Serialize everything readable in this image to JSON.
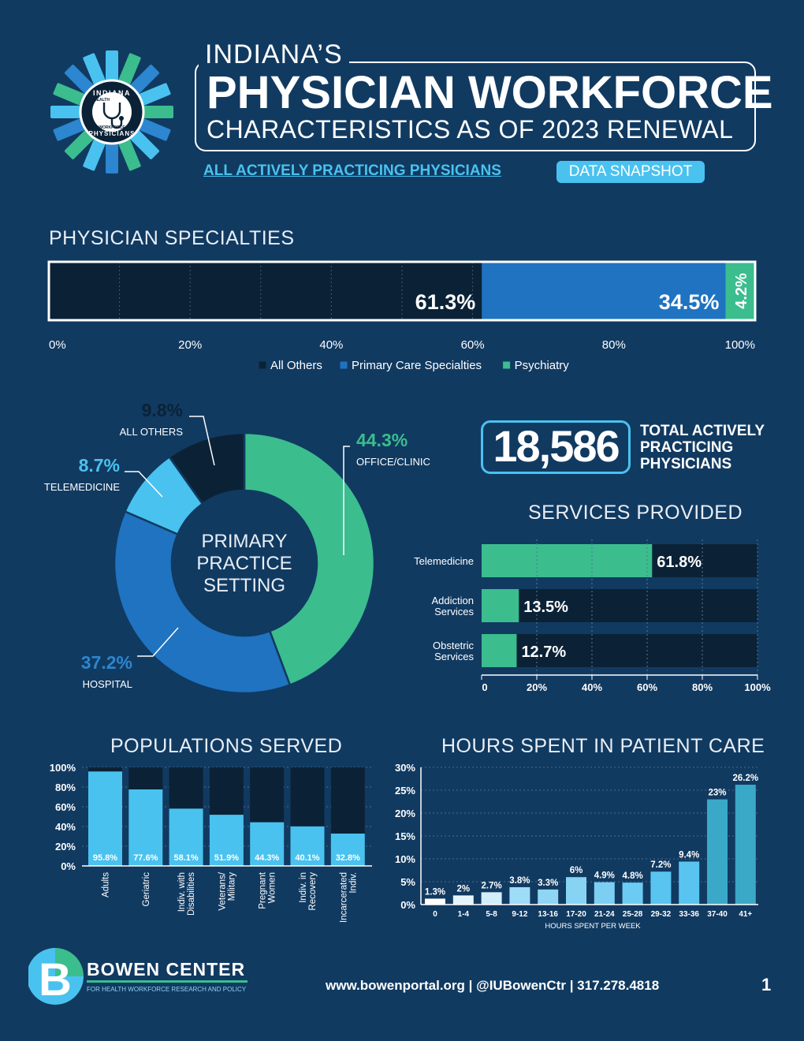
{
  "header": {
    "line1": "INDIANA’S",
    "line2": "PHYSICIAN WORKFORCE",
    "line3": "CHARACTERISTICS AS OF 2023 RENEWAL",
    "subtitle": "ALL ACTIVELY PRACTICING PHYSICIANS",
    "badge": "DATA SNAPSHOT",
    "logo_top": "INDIANA",
    "logo_bottom": "PHYSICIANS",
    "logo_left": "HEALTH",
    "logo_right": "WORKFORCE"
  },
  "colors": {
    "background": "#113a61",
    "dark": "#0b2236",
    "blue": "#1f73c0",
    "green": "#3bbd8e",
    "light_blue": "#49c2ef",
    "pale_blue": "#c9ecfb",
    "teal": "#3aa9c8"
  },
  "total": {
    "value": "18,586",
    "label_lines": [
      "TOTAL ACTIVELY",
      "PRACTICING",
      "PHYSICIANS"
    ]
  },
  "chart_data": [
    {
      "id": "specialties",
      "type": "bar",
      "title": "PHYSICIAN SPECIALTIES",
      "stacked": true,
      "orientation": "horizontal",
      "series": [
        {
          "name": "All Others",
          "value": 61.3,
          "label": "61.3%",
          "color": "#0b2236"
        },
        {
          "name": "Primary Care Specialties",
          "value": 34.5,
          "label": "34.5%",
          "color": "#1f73c0"
        },
        {
          "name": "Psychiatry",
          "value": 4.2,
          "label": "4.2%",
          "color": "#3bbd8e"
        }
      ],
      "xlim": [
        0,
        100
      ],
      "ticks": [
        "0%",
        "20%",
        "40%",
        "60%",
        "80%",
        "100%"
      ]
    },
    {
      "id": "practice_setting",
      "type": "pie",
      "title": "PRIMARY PRACTICE SETTING",
      "center_lines": [
        "PRIMARY",
        "PRACTICE",
        "SETTING"
      ],
      "slices": [
        {
          "name": "OFFICE/CLINIC",
          "value": 44.3,
          "label": "44.3%",
          "color": "#3bbd8e"
        },
        {
          "name": "HOSPITAL",
          "value": 37.2,
          "label": "37.2%",
          "color": "#1f73c0"
        },
        {
          "name": "TELEMEDICINE",
          "value": 8.7,
          "label": "8.7%",
          "color": "#49c2ef"
        },
        {
          "name": "ALL OTHERS",
          "value": 9.8,
          "label": "9.8%",
          "color": "#0b2236"
        }
      ]
    },
    {
      "id": "services",
      "type": "bar",
      "title": "SERVICES PROVIDED",
      "orientation": "horizontal",
      "categories": [
        [
          "Telemedicine"
        ],
        [
          "Addiction",
          "Services"
        ],
        [
          "Obstetric",
          "Services"
        ]
      ],
      "values": [
        61.8,
        13.5,
        12.7
      ],
      "labels": [
        "61.8%",
        "13.5%",
        "12.7%"
      ],
      "xlim": [
        0,
        100
      ],
      "ticks": [
        "0",
        "20%",
        "40%",
        "60%",
        "80%",
        "100%"
      ]
    },
    {
      "id": "populations",
      "type": "bar",
      "title": "POPULATIONS SERVED",
      "categories": [
        [
          "Adults"
        ],
        [
          "Geriatric"
        ],
        [
          "Indiv. with",
          "Disabilities"
        ],
        [
          "Veterans/",
          "Military"
        ],
        [
          "Pregnant",
          "Women"
        ],
        [
          "Indiv. in",
          "Recovery"
        ],
        [
          "Incarcerated",
          "Indiv."
        ]
      ],
      "values": [
        95.8,
        77.6,
        58.1,
        51.9,
        44.3,
        40.1,
        32.8
      ],
      "labels": [
        "95.8%",
        "77.6%",
        "58.1%",
        "51.9%",
        "44.3%",
        "40.1%",
        "32.8%"
      ],
      "ylim": [
        0,
        100
      ],
      "ticks": [
        "0%",
        "20%",
        "40%",
        "60%",
        "80%",
        "100%"
      ]
    },
    {
      "id": "hours",
      "type": "bar",
      "title": "HOURS SPENT IN PATIENT CARE",
      "xlabel": "HOURS SPENT PER WEEK",
      "categories": [
        "0",
        "1-4",
        "5-8",
        "9-12",
        "13-16",
        "17-20",
        "21-24",
        "25-28",
        "29-32",
        "33-36",
        "37-40",
        "41+"
      ],
      "values": [
        1.3,
        2,
        2.7,
        3.8,
        3.3,
        6,
        4.9,
        4.8,
        7.2,
        9.4,
        23,
        26.2
      ],
      "labels": [
        "1.3%",
        "2%",
        "2.7%",
        "3.8%",
        "3.3%",
        "6%",
        "4.9%",
        "4.8%",
        "7.2%",
        "9.4%",
        "23%",
        "26.2%"
      ],
      "ylim": [
        0,
        30
      ],
      "ticks": [
        "0%",
        "5%",
        "10%",
        "15%",
        "20%",
        "25%",
        "30%"
      ]
    }
  ],
  "footer": {
    "org_name": "BOWEN CENTER",
    "org_sub": "FOR HEALTH WORKFORCE RESEARCH AND POLICY",
    "contact": "www.bowenportal.org | @IUBowenCtr | 317.278.4818",
    "page": "1"
  }
}
